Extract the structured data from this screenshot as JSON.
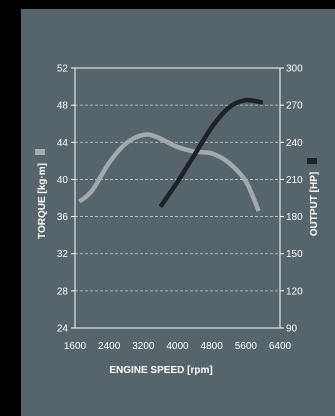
{
  "chart_data": {
    "type": "line",
    "xlabel": "ENGINE SPEED [rpm]",
    "ylabel_left": "TORQUE [kg·m]",
    "ylabel_right": "OUTPUT [HP]",
    "x_ticks": [
      1600,
      2400,
      3200,
      4000,
      4800,
      5600,
      6400
    ],
    "x_tick_labels": [
      "1600",
      "2400",
      "3200",
      "4000",
      "4800",
      "5600",
      "6400"
    ],
    "y_left_ticks": [
      24,
      28,
      32,
      36,
      40,
      44,
      48,
      52
    ],
    "y_left_tick_labels": [
      "24",
      "28",
      "32",
      "36",
      "40",
      "44",
      "48",
      "52"
    ],
    "y_right_ticks": [
      90,
      120,
      150,
      180,
      210,
      240,
      270,
      300
    ],
    "y_right_tick_labels": [
      "90",
      "120",
      "150",
      "180",
      "210",
      "240",
      "270",
      "300"
    ],
    "xlim": [
      1600,
      6400
    ],
    "ylim_left": [
      24,
      52
    ],
    "ylim_right": [
      90,
      300
    ],
    "grid": "horizontal-dashed",
    "colors": {
      "background": "#56646b",
      "torque": "#a3aaae",
      "output": "#1c2226",
      "axis": "#ffffff",
      "grid": "#c8ced1"
    },
    "series": [
      {
        "axis": "left",
        "x": [
          1700,
          2000,
          2400,
          2800,
          3200,
          3500,
          4000,
          4400,
          4800,
          5200,
          5600,
          5900
        ],
        "values": [
          37.6,
          38.8,
          41.8,
          43.9,
          44.8,
          44.6,
          43.5,
          43.0,
          42.8,
          41.8,
          39.8,
          36.6
        ]
      },
      {
        "axis": "right",
        "x": [
          3600,
          4000,
          4400,
          4800,
          5200,
          5600,
          6000
        ],
        "values": [
          188,
          208,
          230,
          252,
          268,
          274,
          272
        ]
      }
    ]
  }
}
